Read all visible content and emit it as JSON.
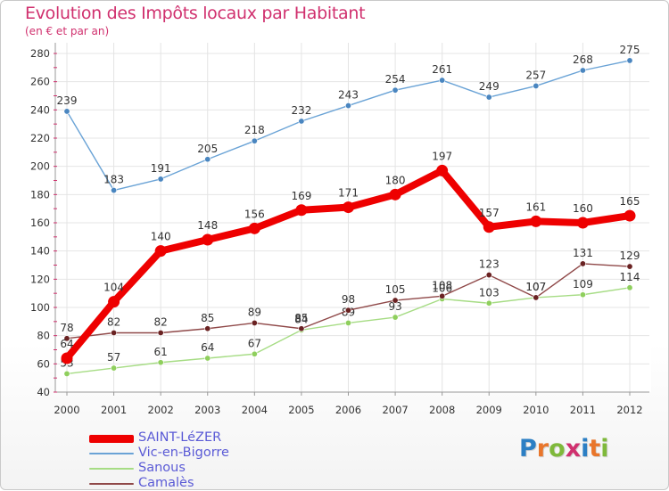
{
  "header": {
    "title": "Evolution des Impôts locaux par Habitant",
    "subtitle": "(en € et par an)"
  },
  "chart_data": {
    "type": "line",
    "title": "Evolution des Impôts locaux par Habitant",
    "subtitle": "(en € et par an)",
    "xlabel": "",
    "ylabel": "",
    "x": [
      "2000",
      "2001",
      "2002",
      "2003",
      "2004",
      "2005",
      "2006",
      "2007",
      "2008",
      "2009",
      "2010",
      "2011",
      "2012"
    ],
    "ylim": [
      40,
      280
    ],
    "yticks": [
      40,
      60,
      80,
      100,
      120,
      140,
      160,
      180,
      200,
      220,
      240,
      260,
      280
    ],
    "grid": true,
    "legend_position": "bottom-left",
    "series": [
      {
        "name": "Vic-en-Bigorre",
        "color": "#6aa3d6",
        "marker": "#4a86c0",
        "values": [
          239,
          183,
          191,
          205,
          218,
          232,
          243,
          254,
          261,
          249,
          257,
          268,
          275
        ]
      },
      {
        "name": "Sanous",
        "color": "#a6dc84",
        "marker": "#8fcf5d",
        "values": [
          53,
          57,
          61,
          64,
          67,
          84,
          89,
          93,
          106,
          103,
          107,
          109,
          114
        ]
      },
      {
        "name": "Camalès",
        "color": "#8f4848",
        "marker": "#6a2222",
        "values": [
          78,
          82,
          82,
          85,
          89,
          85,
          98,
          105,
          108,
          123,
          107,
          131,
          129
        ]
      },
      {
        "name": "SAINT-LéZER",
        "color": "#ee0000",
        "marker": "#ee0000",
        "values": [
          64,
          104,
          140,
          148,
          156,
          169,
          171,
          180,
          197,
          157,
          161,
          160,
          165
        ]
      }
    ],
    "legend_order": [
      "SAINT-LéZER",
      "Vic-en-Bigorre",
      "Sanous",
      "Camalès"
    ]
  },
  "logo": {
    "text": "Proxiti",
    "letters": [
      "P",
      "r",
      "o",
      "x",
      "i",
      "t",
      "i"
    ],
    "colors": [
      "#2c7fc4",
      "#e9762b",
      "#7fb93b",
      "#d0306e",
      "#2c7fc4",
      "#e9762b",
      "#7fb93b"
    ]
  }
}
